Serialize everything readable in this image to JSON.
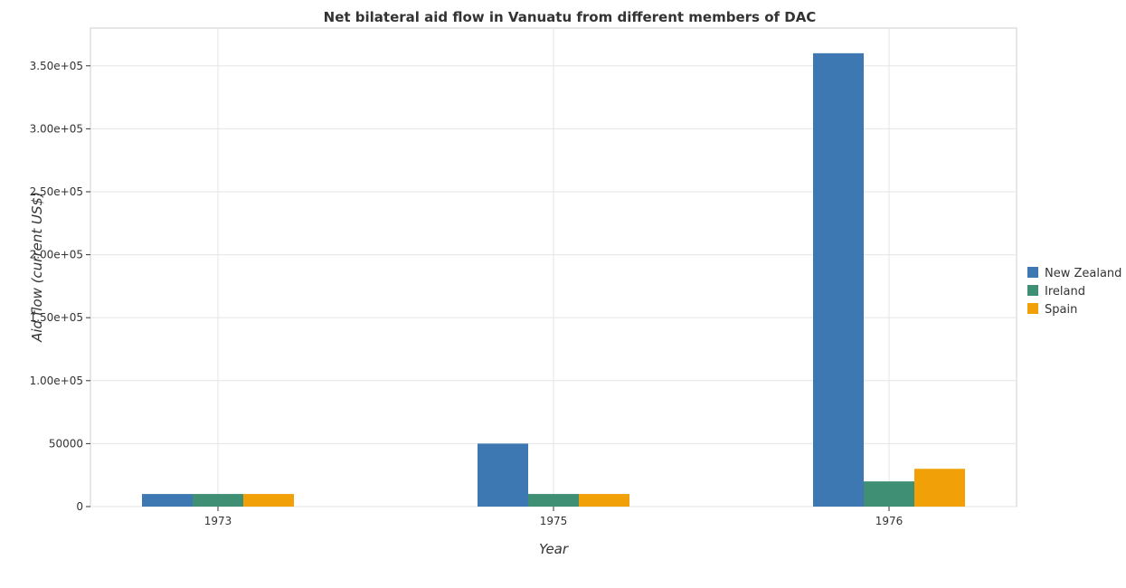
{
  "chart_data": {
    "type": "bar",
    "title": "Net bilateral aid flow in Vanuatu from different members of DAC",
    "xlabel": "Year",
    "ylabel": "Aid flow (current US$)",
    "categories": [
      "1973",
      "1975",
      "1976"
    ],
    "series": [
      {
        "name": "New Zealand",
        "color": "#3d78b3",
        "values": [
          10000,
          50000,
          360000
        ]
      },
      {
        "name": "Ireland",
        "color": "#3e8f74",
        "values": [
          10000,
          10000,
          20000
        ]
      },
      {
        "name": "Spain",
        "color": "#f2a007",
        "values": [
          10000,
          10000,
          30000
        ]
      }
    ],
    "ylim": [
      0,
      380000
    ],
    "yticks": [
      0,
      50000,
      100000,
      150000,
      200000,
      250000,
      300000,
      350000
    ],
    "ytick_labels": [
      "0",
      "50000",
      "1.00e+05",
      "1.50e+05",
      "2.00e+05",
      "2.50e+05",
      "3.00e+05",
      "3.50e+05"
    ],
    "grid": true,
    "legend_position": "right"
  }
}
